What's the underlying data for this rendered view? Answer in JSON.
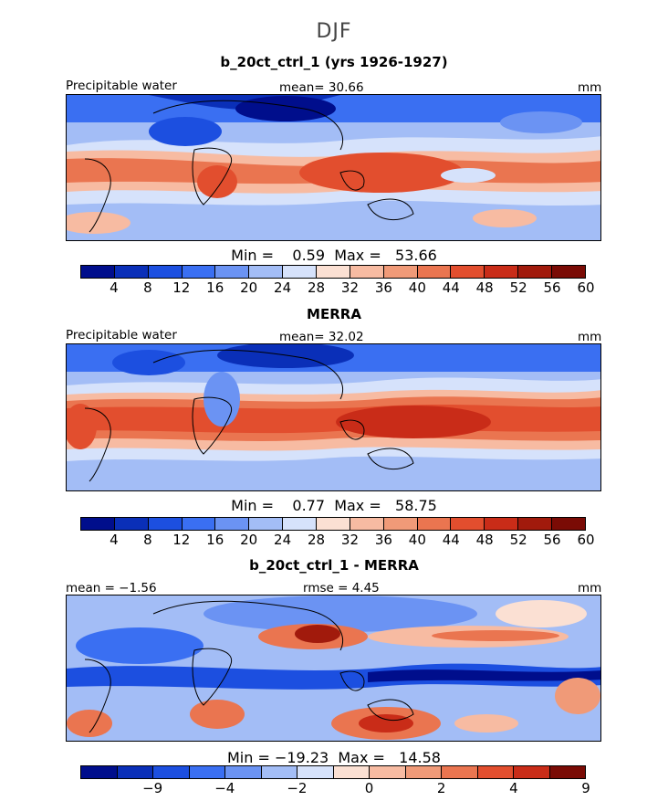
{
  "figure_title": "DJF",
  "panels": [
    {
      "title": "b_20ct_ctrl_1 (yrs 1926-1927)",
      "left_label": "Precipitable water",
      "mid_label": "mean=  30.66",
      "right_label": "mm",
      "minmax": "Min =    0.59  Max =   53.66",
      "min": 0.59,
      "max": 53.66,
      "mean": 30.66
    },
    {
      "title": "MERRA",
      "left_label": "Precipitable water",
      "mid_label": "mean=  32.02",
      "right_label": "mm",
      "minmax": "Min =    0.77  Max =   58.75",
      "min": 0.77,
      "max": 58.75,
      "mean": 32.02
    },
    {
      "title": "b_20ct_ctrl_1 - MERRA",
      "left_label": "mean =  −1.56",
      "mid_label": "rmse =    4.45",
      "right_label": "mm",
      "minmax": "Min = −19.23  Max =   14.58",
      "min": -19.23,
      "max": 14.58,
      "mean": -1.56,
      "rmse": 4.45
    }
  ],
  "colorbar_abs": {
    "colors": [
      "#000e8c",
      "#0a2fb8",
      "#1c4fe0",
      "#3a6ff2",
      "#6b93f3",
      "#a3bdf6",
      "#d6e2fb",
      "#fbe0d3",
      "#f7bba2",
      "#f09a78",
      "#ea7550",
      "#e24e2e",
      "#c92c18",
      "#a11a0c",
      "#7a0b05"
    ],
    "ticks": [
      "4",
      "8",
      "12",
      "16",
      "20",
      "24",
      "28",
      "32",
      "36",
      "40",
      "44",
      "48",
      "52",
      "56",
      "60"
    ]
  },
  "colorbar_diff": {
    "colors": [
      "#000e8c",
      "#0a2fb8",
      "#1c4fe0",
      "#3a6ff2",
      "#6b93f3",
      "#a3bdf6",
      "#d6e2fb",
      "#fbe0d3",
      "#f7bba2",
      "#f09a78",
      "#ea7550",
      "#e24e2e",
      "#c92c18",
      "#7a0b05"
    ],
    "ticks": [
      "−9",
      "−4",
      "−2",
      "0",
      "2",
      "4",
      "9"
    ],
    "tick_positions": [
      2,
      4,
      6,
      8,
      10,
      12,
      14
    ]
  }
}
